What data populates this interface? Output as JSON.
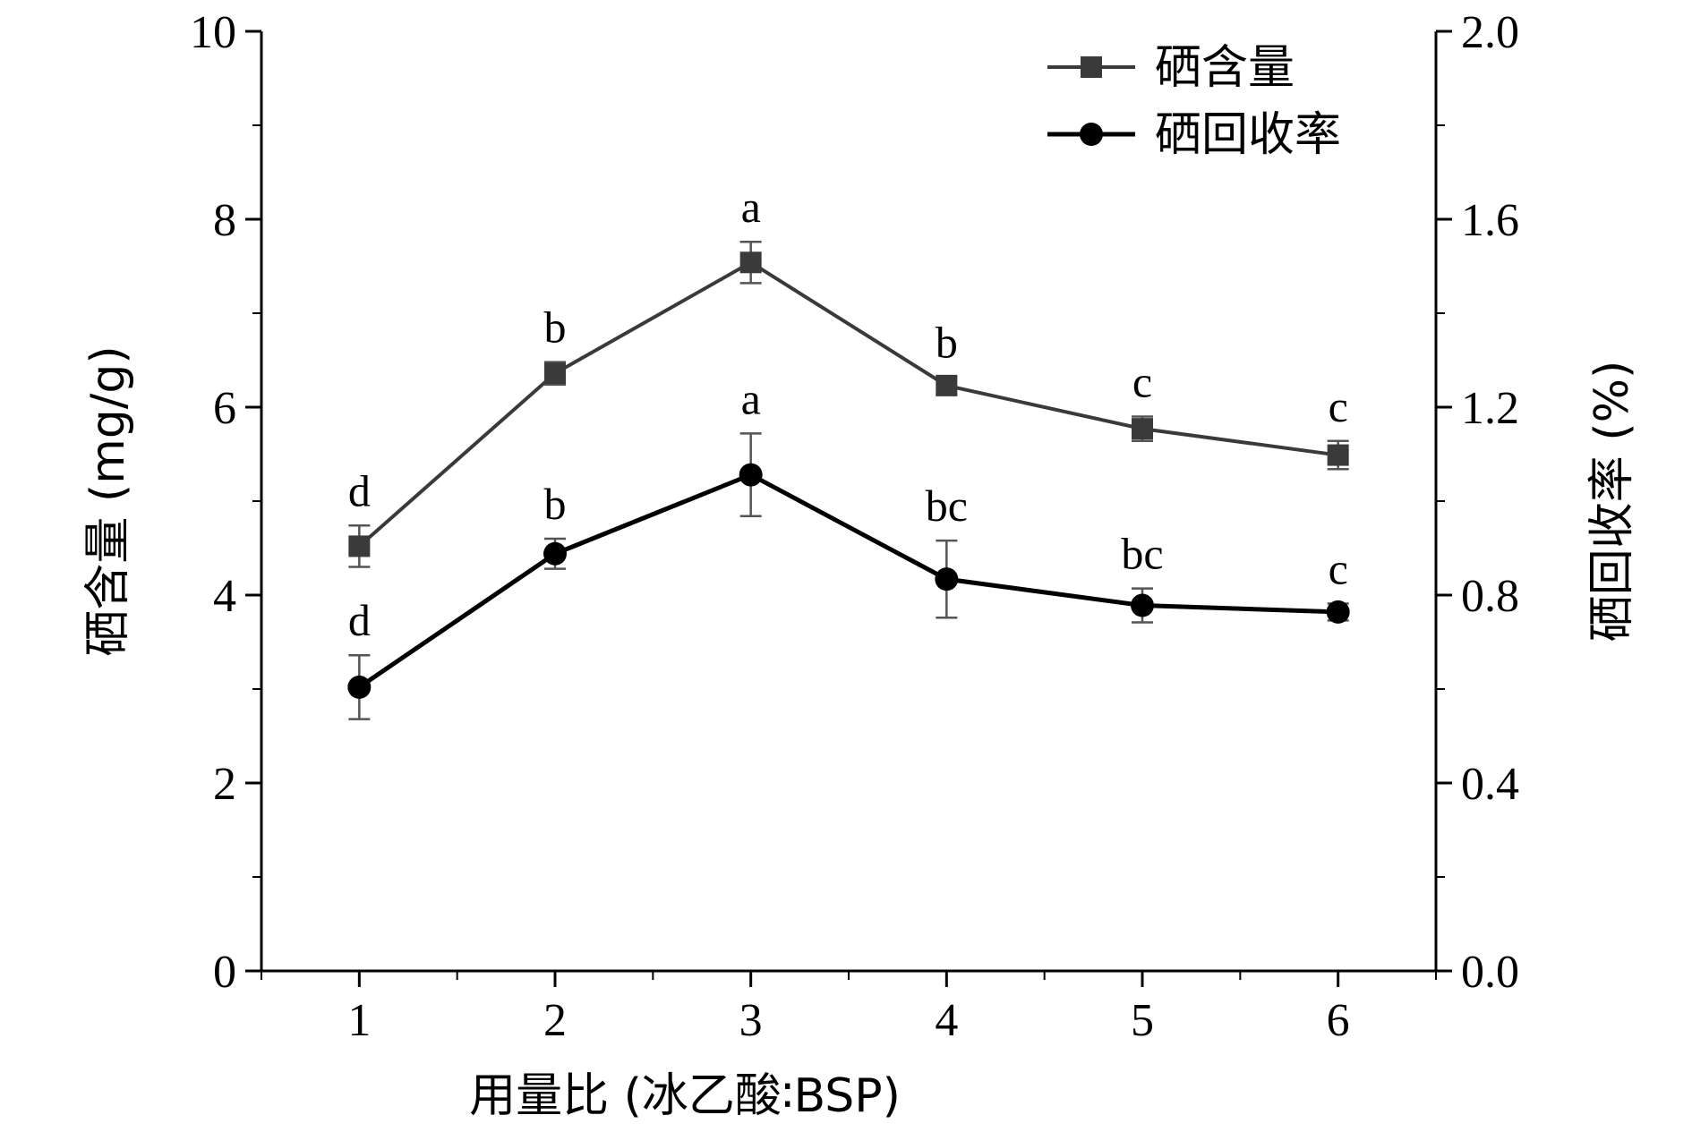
{
  "chart_data": {
    "type": "line",
    "x": [
      1,
      2,
      3,
      4,
      5,
      6
    ],
    "xlabel": "用量比 (冰乙酸∶BSP)",
    "ylabel_left": "硒含量 (mg/g)",
    "ylabel_right": "硒回收率 (%)",
    "xlim": [
      0.5,
      6.5
    ],
    "ylim_left": [
      0,
      10
    ],
    "ylim_right": [
      0.0,
      2.0
    ],
    "x_ticks": [
      "1",
      "2",
      "3",
      "4",
      "5",
      "6"
    ],
    "y_ticks_left": [
      "0",
      "2",
      "4",
      "6",
      "8",
      "10"
    ],
    "y_ticks_right": [
      "0.0",
      "0.4",
      "0.8",
      "1.2",
      "1.6",
      "2.0"
    ],
    "grid": false,
    "legend_position": "top-right",
    "series": [
      {
        "name": "硒含量",
        "axis": "left",
        "marker": "square",
        "color": "#3a3a3a",
        "values": [
          4.52,
          6.36,
          7.54,
          6.23,
          5.77,
          5.49
        ],
        "errors": [
          0.22,
          0.12,
          0.22,
          0.09,
          0.13,
          0.15
        ],
        "labels": [
          "d",
          "b",
          "a",
          "b",
          "c",
          "c"
        ]
      },
      {
        "name": "硒回收率",
        "axis": "right",
        "marker": "circle",
        "color": "#000000",
        "values": [
          0.604,
          0.888,
          1.056,
          0.834,
          0.778,
          0.764
        ],
        "errors": [
          0.068,
          0.032,
          0.088,
          0.082,
          0.036,
          0.018
        ],
        "labels": [
          "d",
          "b",
          "a",
          "bc",
          "bc",
          "c"
        ]
      }
    ]
  }
}
